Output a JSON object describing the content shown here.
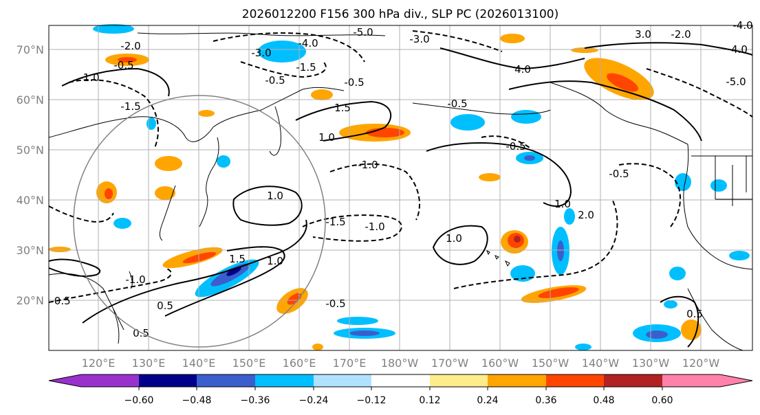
{
  "title": "2026012200 F156 300 hPa div., SLP PC (2026013100)",
  "latitude_labels": [
    "70°N",
    "60°N",
    "50°N",
    "40°N",
    "30°N",
    "20°N"
  ],
  "longitude_labels": [
    "120°E",
    "130°E",
    "140°E",
    "150°E",
    "160°E",
    "170°E",
    "180°W",
    "170°W",
    "160°W",
    "150°W",
    "140°W",
    "130°W",
    "120°W"
  ],
  "colorbar": {
    "colors": [
      "#9932cc",
      "#00008b",
      "#3a5fcd",
      "#00bfff",
      "#b0e2ff",
      "#ffffff",
      "#ffec8b",
      "#ffa500",
      "#ff4500",
      "#b22222",
      "#ff82ab"
    ],
    "tick_labels": [
      "−0.60",
      "−0.48",
      "−0.36",
      "−0.24",
      "−0.12",
      "0.12",
      "0.24",
      "0.36",
      "0.48",
      "0.60"
    ]
  },
  "contour_labels": [
    "-5.0",
    "-4.0",
    "-3.0",
    "-3.0",
    "-2.0",
    "-1.5",
    "-1.5",
    "-1.0",
    "-1.0",
    "-1.0",
    "-0.5",
    "-0.5",
    "-0.5",
    "-0.5",
    "-0.5",
    "-0.5",
    "-0.5",
    "1.0",
    "1.0",
    "1.0",
    "1.0",
    "1.0",
    "1.5",
    "1.5",
    "4.0",
    "0.5",
    "0.5",
    "0.5",
    "-1.5",
    "-0.5",
    "-1.0",
    "-2.0",
    "-4.0",
    "3.0",
    "2.0",
    "-5.0",
    "4.0"
  ],
  "colors": {
    "land_line": "#000000",
    "grid": "#b0b0b0",
    "circle": "#808080"
  }
}
